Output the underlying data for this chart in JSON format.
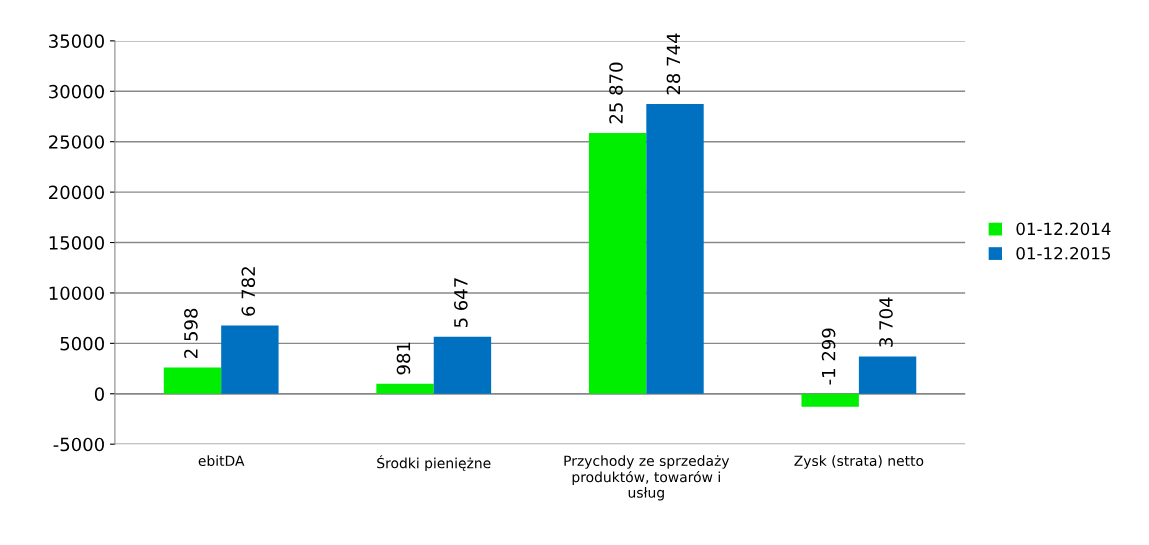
{
  "chart_data": {
    "type": "bar",
    "categories": [
      "ebitDA",
      "Środki pieniężne",
      "Przychody ze sprzedaży produktów, towarów i usług",
      "Zysk (strata) netto"
    ],
    "series": [
      {
        "name": "01-12.2014",
        "color": "#00ee00",
        "values": [
          2598,
          981,
          25870,
          -1299
        ],
        "value_labels": [
          "2 598",
          "981",
          "25 870",
          "-1 299"
        ]
      },
      {
        "name": "01-12.2015",
        "color": "#0070c0",
        "values": [
          6782,
          5647,
          28744,
          3704
        ],
        "value_labels": [
          "6 782",
          "5 647",
          "28 744",
          "3 704"
        ]
      }
    ],
    "ylim": [
      -5000,
      35000
    ],
    "yticks": [
      -5000,
      0,
      5000,
      10000,
      15000,
      20000,
      25000,
      30000,
      35000
    ],
    "grid": "y",
    "legend": "right"
  }
}
